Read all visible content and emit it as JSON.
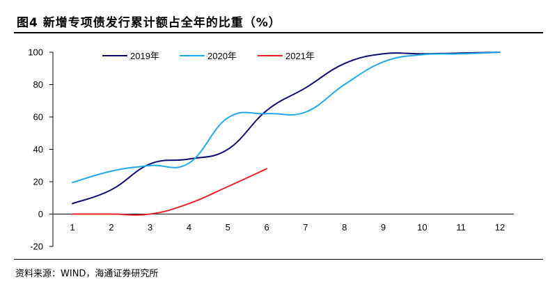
{
  "header": {
    "title": "图4  新增专项债发行累计额占全年的比重（%）"
  },
  "footer": {
    "source": "资料来源：WIND，海通证券研究所"
  },
  "chart_data": {
    "type": "line",
    "title": "图4  新增专项债发行累计额占全年的比重（%）",
    "xlabel": "",
    "ylabel": "",
    "x": [
      1,
      2,
      3,
      4,
      5,
      6,
      7,
      8,
      9,
      10,
      11,
      12
    ],
    "xticks": [
      "1",
      "2",
      "3",
      "4",
      "5",
      "6",
      "7",
      "8",
      "9",
      "10",
      "11",
      "12"
    ],
    "yticks": [
      "100",
      "80",
      "60",
      "40",
      "20",
      "0",
      "-20"
    ],
    "ylim": [
      -20,
      100
    ],
    "grid": false,
    "legend": "top",
    "series": [
      {
        "name": "2019年",
        "color": "#0c0c6e",
        "values": [
          6.5,
          15,
          31,
          34,
          40,
          64,
          78,
          93,
          99,
          99,
          99.5,
          100
        ]
      },
      {
        "name": "2020年",
        "color": "#1eaaea",
        "values": [
          19.5,
          26.5,
          30,
          31.5,
          59.5,
          62,
          63,
          80,
          94,
          98.5,
          99,
          100
        ]
      },
      {
        "name": "2021年",
        "color": "#e8232a",
        "values": [
          0,
          0,
          0,
          6.5,
          17,
          28,
          null,
          null,
          null,
          null,
          null,
          null
        ]
      }
    ]
  }
}
